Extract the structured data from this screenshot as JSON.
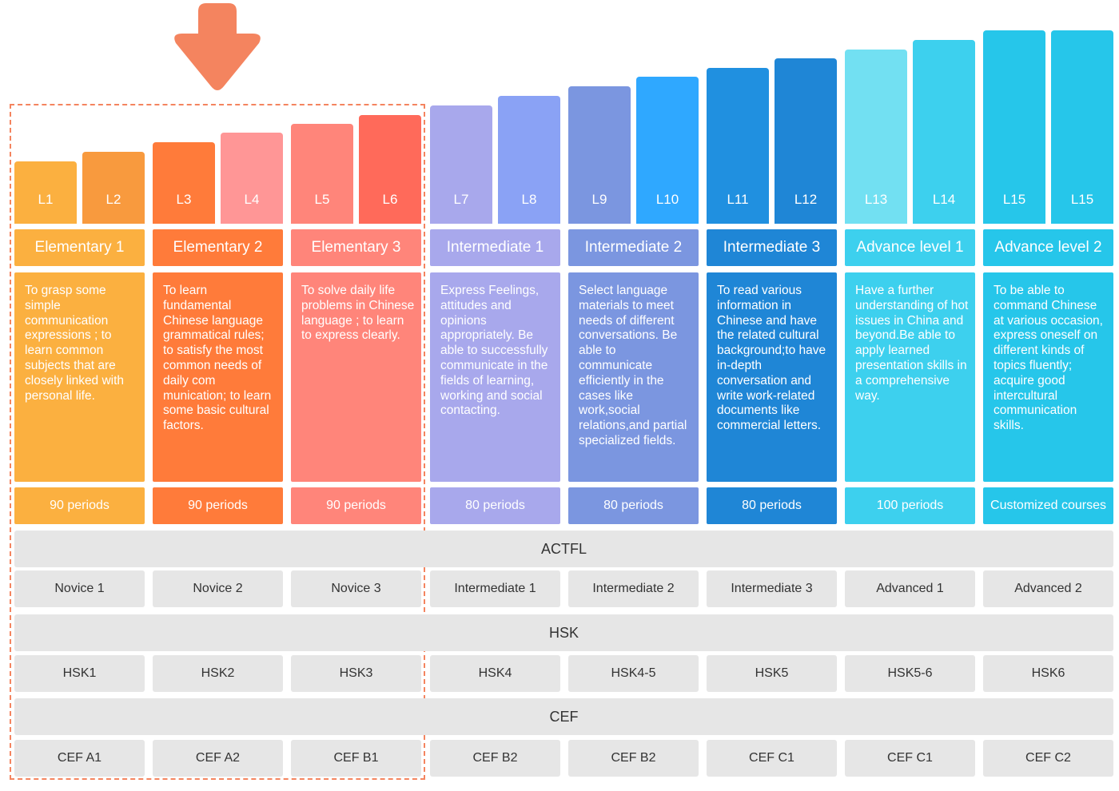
{
  "colors": {
    "highlight": "#f4845f",
    "arrow": "#f4845f",
    "band_bg": "#e6e6e6"
  },
  "levels": [
    {
      "label": "L1",
      "color": "#fbb040"
    },
    {
      "label": "L2",
      "color": "#f89a3e"
    },
    {
      "label": "L3",
      "color": "#ff7b3a"
    },
    {
      "label": "L4",
      "color": "#ff9696"
    },
    {
      "label": "L5",
      "color": "#ff857a"
    },
    {
      "label": "L6",
      "color": "#ff6a5a"
    },
    {
      "label": "L7",
      "color": "#a8a8ec"
    },
    {
      "label": "L8",
      "color": "#8aa2f5"
    },
    {
      "label": "L9",
      "color": "#7b96e0"
    },
    {
      "label": "L10",
      "color": "#2fa8ff"
    },
    {
      "label": "L11",
      "color": "#2090e0"
    },
    {
      "label": "L12",
      "color": "#1f86d6"
    },
    {
      "label": "L13",
      "color": "#72e0f2"
    },
    {
      "label": "L14",
      "color": "#3dd0ee"
    },
    {
      "label": "L15",
      "color": "#26c6ea"
    },
    {
      "label": "L15",
      "color": "#26c6ea"
    }
  ],
  "courses": [
    {
      "name": "Elementary 1",
      "color": "#fbb040",
      "desc_color": "#fbb040",
      "period_color": "#fbb040",
      "description": "To grasp some simple communication expressions ; to learn common subjects that are closely linked with personal life.",
      "periods": "90 periods"
    },
    {
      "name": "Elementary 2",
      "color": "#ff7b3a",
      "desc_color": "#ff7b3a",
      "period_color": "#ff7b3a",
      "description": "To learn fundamental Chinese language grammatical rules; to satisfy the most common needs of daily com munication; to learn some basic cultural factors.",
      "periods": "90 periods"
    },
    {
      "name": "Elementary 3",
      "color": "#ff857a",
      "desc_color": "#ff857a",
      "period_color": "#ff857a",
      "description": "To solve daily life problems in Chinese language ; to learn to express clearly.",
      "periods": "90 periods"
    },
    {
      "name": "Intermediate 1",
      "color": "#a8a8ec",
      "desc_color": "#a8a8ec",
      "period_color": "#a8a8ec",
      "description": "Express Feelings, attitudes and opinions appropriately. Be able to successfully communicate in the fields of learning, working and social contacting.",
      "periods": "80 periods"
    },
    {
      "name": "Intermediate 2",
      "color": "#7b96e0",
      "desc_color": "#7b96e0",
      "period_color": "#7b96e0",
      "description": "Select language materials to meet needs of different conversations. Be able to communicate efficiently in the cases like work,social relations,and partial specialized fields.",
      "periods": "80 periods"
    },
    {
      "name": "Intermediate 3",
      "color": "#1f86d6",
      "desc_color": "#1f86d6",
      "period_color": "#1f86d6",
      "description": "To read various information in Chinese and have the related cultural background;to have in-depth conversation and write work-related documents like commercial letters.",
      "periods": "80 periods"
    },
    {
      "name": "Advance level 1",
      "color": "#3dd0ee",
      "desc_color": "#3dd0ee",
      "period_color": "#3dd0ee",
      "description": "Have a further understanding of hot issues in China and beyond.Be able to apply learned presentation skills in a comprehensive way.",
      "periods": "100 periods"
    },
    {
      "name": "Advance level 2",
      "color": "#26c6ea",
      "desc_color": "#26c6ea",
      "period_color": "#26c6ea",
      "description": "To be able to command Chinese at various occasion, express oneself on different kinds of topics fluently; acquire good intercultural communication skills.",
      "periods": "Customized courses"
    }
  ],
  "bands": [
    {
      "title": "ACTFL",
      "cells": [
        "Novice 1",
        "Novice 2",
        "Novice 3",
        "Intermediate 1",
        "Intermediate 2",
        "Intermediate 3",
        "Advanced 1",
        "Advanced 2"
      ]
    },
    {
      "title": "HSK",
      "cells": [
        "HSK1",
        "HSK2",
        "HSK3",
        "HSK4",
        "HSK4-5",
        "HSK5",
        "HSK5-6",
        "HSK6"
      ]
    },
    {
      "title": "CEF",
      "cells": [
        "CEF A1",
        "CEF A2",
        "CEF B1",
        "CEF B2",
        "CEF B2",
        "CEF C1",
        "CEF C1",
        "CEF C2"
      ]
    }
  ]
}
